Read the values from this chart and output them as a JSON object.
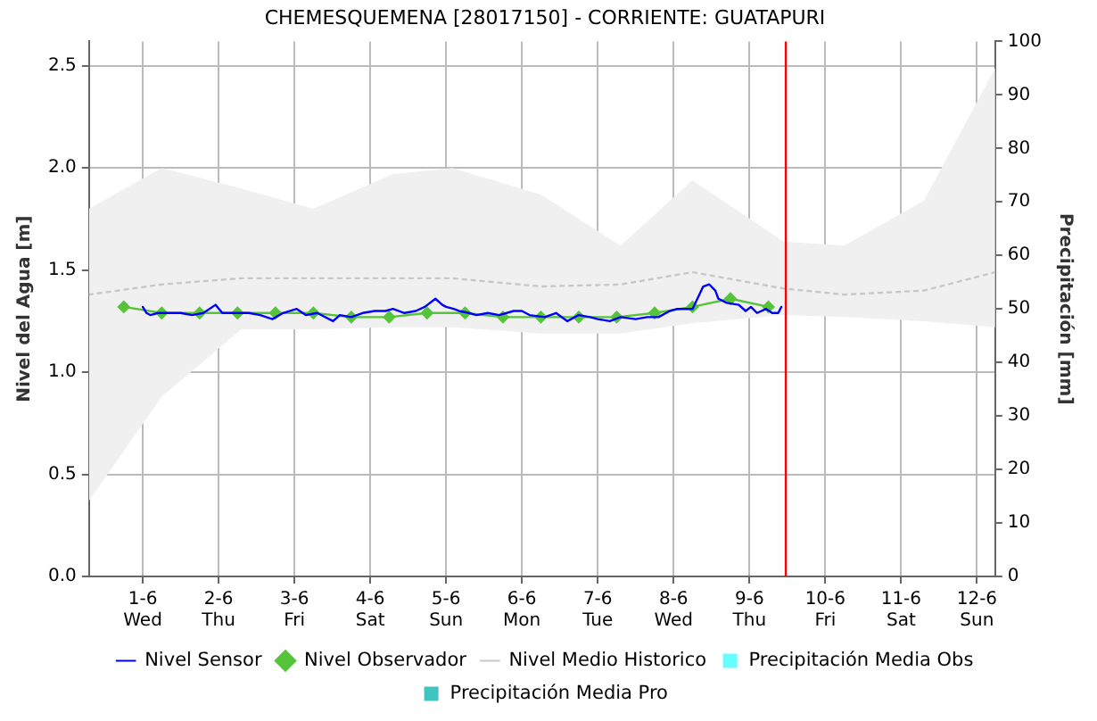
{
  "chart_data": {
    "type": "line",
    "title": "CHEMESQUEMENA [28017150] - CORRIENTE: GUATAPURI",
    "ylabel": "Nivel del Agua [m]",
    "y2label": "Precipitación [mm]",
    "xlim": [
      "--05-31T07:00",
      "--06-12T05:46"
    ],
    "xticks": [
      {
        "value": "--06-01",
        "label": "1-6\nWed"
      },
      {
        "value": "--06-02",
        "label": "2-6\nThu"
      },
      {
        "value": "--06-03",
        "label": "3-6\nFri"
      },
      {
        "value": "--06-04",
        "label": "4-6\nSat"
      },
      {
        "value": "--06-05",
        "label": "5-6\nSun"
      },
      {
        "value": "--06-06",
        "label": "6-6\nMon"
      },
      {
        "value": "--06-07",
        "label": "7-6\nTue"
      },
      {
        "value": "--06-08",
        "label": "8-6\nWed"
      },
      {
        "value": "--06-09",
        "label": "9-6\nThu"
      },
      {
        "value": "--06-10",
        "label": "10-6\nFri"
      },
      {
        "value": "--06-11",
        "label": "11-6\nSat"
      },
      {
        "value": "--06-12",
        "label": "12-6\nSun"
      }
    ],
    "ylim": [
      0,
      2.62
    ],
    "yticks": [
      {
        "value": 0,
        "label": "0.0"
      },
      {
        "value": 0.5,
        "label": "0.5"
      },
      {
        "value": 1,
        "label": "1.0"
      },
      {
        "value": 1.5,
        "label": "1.5"
      },
      {
        "value": 2,
        "label": "2.0"
      },
      {
        "value": 2.5,
        "label": "2.5"
      }
    ],
    "y2lim": [
      0,
      100
    ],
    "y2ticks": [
      0,
      10,
      20,
      30,
      40,
      50,
      60,
      70,
      80,
      90,
      100
    ],
    "grid": true,
    "legend": "bottom",
    "ref_lines": [
      {
        "axis": "x",
        "value": "--06-09T11:31",
        "color": "#ff0000"
      }
    ],
    "series": [
      {
        "name": "Nivel Sensor",
        "color": "#0000ff",
        "marker": "none",
        "line_style": "solid",
        "x": [
          "--06-01T00:00",
          "--06-01T01:12",
          "--06-01T02:24",
          "--06-01T04:48",
          "--06-01T08:24",
          "--06-01T12:00",
          "--06-01T15:36",
          "--06-01T19:12",
          "--06-01T23:02",
          "--06-02T01:12",
          "--06-02T04:48",
          "--06-02T09:36",
          "--06-02T13:12",
          "--06-02T17:02",
          "--06-02T20:24",
          "--06-03T00:43",
          "--06-03T03:36",
          "--06-03T07:12",
          "--06-03T12:14",
          "--06-03T14:24",
          "--06-03T18:00",
          "--06-03T21:36",
          "--06-04T01:26",
          "--06-04T04:48",
          "--06-04T07:12",
          "--06-04T10:48",
          "--06-04T14:24",
          "--06-04T17:17",
          "--06-04T20:38",
          "--06-04T22:48",
          "--06-05T00:00",
          "--06-05T02:24",
          "--06-05T04:05",
          "--06-05T07:12",
          "--06-05T09:36",
          "--06-05T13:12",
          "--06-05T16:48",
          "--06-05T21:22",
          "--06-06T00:00",
          "--06-06T02:24",
          "--06-06T07:12",
          "--06-06T10:48",
          "--06-06T14:24",
          "--06-06T18:00",
          "--06-06T21:36",
          "--06-07T00:00",
          "--06-07T03:50",
          "--06-07T07:12",
          "--06-07T12:00",
          "--06-07T15:36",
          "--06-07T19:12",
          "--06-07T22:48",
          "--06-08T01:12",
          "--06-08T03:36",
          "--06-08T06:00",
          "--06-08T09:22",
          "--06-08T11:17",
          "--06-08T13:12",
          "--06-08T14:10",
          "--06-08T16:48",
          "--06-08T20:38",
          "--06-08T22:48",
          "--06-09T00:29",
          "--06-09T02:24",
          "--06-09T05:17",
          "--06-09T07:12",
          "--06-09T09:07",
          "--06-09T10:05"
        ],
        "values": [
          1.32,
          1.29,
          1.28,
          1.29,
          1.29,
          1.29,
          1.28,
          1.29,
          1.33,
          1.29,
          1.29,
          1.29,
          1.28,
          1.26,
          1.29,
          1.31,
          1.28,
          1.29,
          1.25,
          1.28,
          1.27,
          1.29,
          1.3,
          1.3,
          1.31,
          1.29,
          1.3,
          1.32,
          1.36,
          1.33,
          1.32,
          1.31,
          1.3,
          1.29,
          1.28,
          1.29,
          1.28,
          1.3,
          1.3,
          1.28,
          1.27,
          1.29,
          1.25,
          1.28,
          1.27,
          1.26,
          1.25,
          1.27,
          1.26,
          1.27,
          1.27,
          1.3,
          1.31,
          1.31,
          1.31,
          1.42,
          1.43,
          1.4,
          1.36,
          1.34,
          1.33,
          1.3,
          1.32,
          1.29,
          1.31,
          1.29,
          1.29,
          1.32
        ]
      },
      {
        "name": "Nivel Observador",
        "color": "#55c43a",
        "marker": "diamond",
        "line_style": "solid",
        "x": [
          "--05-31T18:00",
          "--06-01T06:00",
          "--06-01T18:00",
          "--06-02T06:00",
          "--06-02T18:00",
          "--06-03T06:00",
          "--06-03T18:00",
          "--06-04T06:00",
          "--06-04T18:00",
          "--06-05T06:00",
          "--06-05T18:00",
          "--06-06T06:00",
          "--06-06T18:00",
          "--06-07T06:00",
          "--06-07T18:00",
          "--06-08T06:00",
          "--06-08T18:00",
          "--06-09T06:00"
        ],
        "values": [
          1.32,
          1.29,
          1.29,
          1.29,
          1.29,
          1.29,
          1.27,
          1.27,
          1.29,
          1.29,
          1.27,
          1.27,
          1.27,
          1.27,
          1.29,
          1.32,
          1.36,
          1.32
        ]
      },
      {
        "name": "Nivel Medio Historico",
        "color": "#c8c8c8",
        "marker": "none",
        "line_style": "dotted",
        "x": [
          "--05-31T07:00",
          "--06-01T06:00",
          "--06-02T07:12",
          "--06-03T06:00",
          "--06-04T07:00",
          "--06-05T02:00",
          "--06-06T06:00",
          "--06-07T07:12",
          "--06-08T06:00",
          "--06-09T10:48",
          "--06-10T06:00",
          "--06-11T07:12",
          "--06-12T05:46"
        ],
        "values": [
          1.38,
          1.43,
          1.46,
          1.46,
          1.46,
          1.46,
          1.42,
          1.43,
          1.49,
          1.41,
          1.38,
          1.4,
          1.49
        ],
        "lower": [
          0.37,
          0.88,
          1.21,
          1.21,
          1.22,
          1.22,
          1.19,
          1.19,
          1.24,
          1.28,
          1.27,
          1.25,
          1.22
        ],
        "upper": [
          1.8,
          2.0,
          1.9,
          1.8,
          1.97,
          2.0,
          1.87,
          1.62,
          1.94,
          1.64,
          1.62,
          1.84,
          2.49
        ]
      },
      {
        "name": "Precipitación Media Obs",
        "type": "bar",
        "axis": "y2",
        "color": "#66ffff"
      },
      {
        "name": "Precipitación Media Pro",
        "type": "bar",
        "axis": "y2",
        "color": "#40c4c0"
      }
    ]
  }
}
